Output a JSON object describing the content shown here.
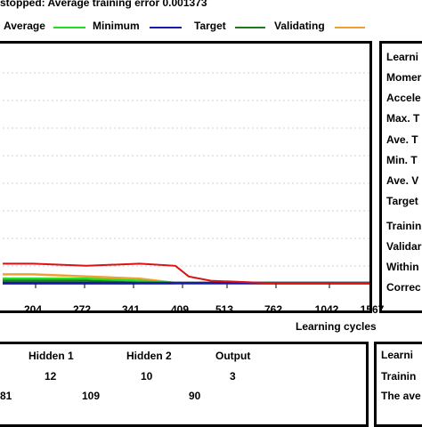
{
  "status_line": "stopped: Average training error 0.001373",
  "legend": [
    {
      "label": "Average",
      "color": "#22dd22"
    },
    {
      "label": "Minimum",
      "color": "#1a1aaa"
    },
    {
      "label": "Target",
      "color": "#1e7a1e"
    },
    {
      "label": "Validating",
      "color": "#f0a030"
    }
  ],
  "side_labels": [
    "Learni",
    "Momer",
    "Accele",
    "Max. T",
    "Ave. T",
    "Min. T",
    "Ave. V",
    "Target",
    "Trainin",
    "Validar",
    "Within",
    "Correc"
  ],
  "x_ticks": [
    "204",
    "272",
    "341",
    "409",
    "513",
    "762",
    "1042",
    "1567"
  ],
  "x_axis_label": "Learning cycles",
  "network": {
    "headers": [
      "Hidden 1",
      "Hidden 2",
      "Output"
    ],
    "node_counts": [
      "12",
      "10",
      "3"
    ],
    "weights": [
      "81",
      "109",
      "90"
    ]
  },
  "info_panel": [
    "Learni",
    "Trainin",
    "The ave"
  ],
  "chart_data": {
    "type": "line",
    "x_ticks": [
      "204",
      "272",
      "341",
      "409",
      "513",
      "762",
      "1042",
      "1567"
    ],
    "xlabel": "Learning cycles",
    "series": [
      {
        "name": "Validating",
        "color": "#f0a030",
        "y_frac": [
          0.04,
          0.04,
          0.03,
          0.02,
          0.0,
          0.0,
          0.0,
          0.0,
          0.0
        ]
      },
      {
        "name": "Average",
        "color": "#22dd22",
        "y_frac": [
          0.02,
          0.02,
          0.02,
          0.01,
          0.0,
          0.0,
          0.0,
          0.0,
          0.0
        ]
      },
      {
        "name": "Target",
        "color": "#1e7a1e",
        "y_frac": [
          0.01,
          0.01,
          0.01,
          0.0,
          0.0,
          0.0,
          0.0,
          0.0,
          0.0
        ]
      },
      {
        "name": "Minimum",
        "color": "#1a1aaa",
        "y_frac": [
          0.0,
          0.0,
          0.0,
          0.0,
          0.0,
          0.0,
          0.0,
          0.0,
          0.0
        ]
      },
      {
        "color": "#dd1111",
        "y_frac": [
          0.09,
          0.09,
          0.08,
          0.09,
          0.08,
          0.03,
          0.01,
          0.0,
          0.0
        ]
      }
    ]
  }
}
